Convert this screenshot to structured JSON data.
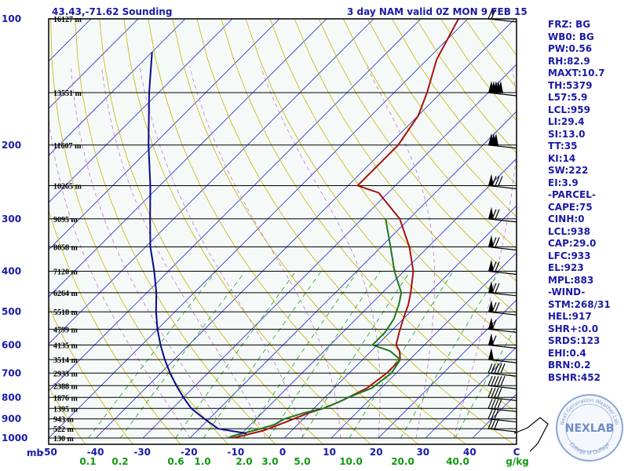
{
  "header": {
    "location": "43.43,-71.62 Sounding",
    "valid": "3 day NAM valid 0Z MON  9 FEB 15"
  },
  "colors": {
    "frame": "#000000",
    "background": "#f5faf9",
    "isobar": "#000000",
    "isotherm": "#2a2ad0",
    "dry_adiabat": "#c8b400",
    "moist_adiabat": "#d070d0",
    "mixing_ratio": "#20a020",
    "temperature": "#aa1010",
    "dewpoint": "#1a7a1a",
    "parcel": "#0a0a8c",
    "label_blue": "#1a1aa6",
    "label_green": "#119911"
  },
  "chart_data": {
    "type": "line",
    "title": "43.43,-71.62 Sounding",
    "subtitle": "3 day NAM valid 0Z MON  9 FEB 15",
    "x_unit_label": "C",
    "y_unit_label": "mb",
    "mixing_ratio_unit_label": "g/kg",
    "pressure_levels": [
      {
        "p": 100,
        "label": "100",
        "height": "16127 m"
      },
      {
        "p": 150,
        "label": "",
        "height": "13551 m"
      },
      {
        "p": 200,
        "label": "200",
        "height": "11607 m"
      },
      {
        "p": 250,
        "label": "",
        "height": "10265 m"
      },
      {
        "p": 300,
        "label": "300",
        "height": "9095 m"
      },
      {
        "p": 350,
        "label": "",
        "height": "8058 m"
      },
      {
        "p": 400,
        "label": "400",
        "height": "7120 m"
      },
      {
        "p": 450,
        "label": "",
        "height": "6264 m"
      },
      {
        "p": 500,
        "label": "500",
        "height": "5518 m"
      },
      {
        "p": 550,
        "label": "",
        "height": "4799 m"
      },
      {
        "p": 600,
        "label": "600",
        "height": "4135 m"
      },
      {
        "p": 650,
        "label": "",
        "height": "3514 m"
      },
      {
        "p": 700,
        "label": "700",
        "height": "2933 m"
      },
      {
        "p": 750,
        "label": "",
        "height": "2388 m"
      },
      {
        "p": 800,
        "label": "800",
        "height": "1876 m"
      },
      {
        "p": 850,
        "label": "",
        "height": "1395 m"
      },
      {
        "p": 900,
        "label": "900",
        "height": "943 m"
      },
      {
        "p": 950,
        "label": "",
        "height": "522 m"
      },
      {
        "p": 1000,
        "label": "1000",
        "height": "130 m"
      }
    ],
    "x_ticks": [
      "-50",
      "-40",
      "-30",
      "-20",
      "-10",
      "0",
      "10",
      "20",
      "30",
      "40",
      "C"
    ],
    "mixing_ratio_ticks": [
      "0.1",
      "0.2",
      "0.6",
      "1.0",
      "2.0",
      "3.0",
      "5.0",
      "10.0",
      "20.0",
      "40.0",
      "g/kg"
    ],
    "series": [
      {
        "role": "temperature",
        "points": [
          [
            1000,
            -11
          ],
          [
            985,
            -9
          ],
          [
            960,
            -6
          ],
          [
            930,
            -4
          ],
          [
            900,
            -2
          ],
          [
            870,
            0
          ],
          [
            850,
            2
          ],
          [
            820,
            4
          ],
          [
            800,
            5
          ],
          [
            760,
            7
          ],
          [
            700,
            8
          ],
          [
            650,
            8
          ],
          [
            620,
            6
          ],
          [
            600,
            4
          ],
          [
            560,
            2
          ],
          [
            520,
            0
          ],
          [
            480,
            -2
          ],
          [
            450,
            -4
          ],
          [
            400,
            -8
          ],
          [
            350,
            -14
          ],
          [
            300,
            -22
          ],
          [
            260,
            -32
          ],
          [
            250,
            -38
          ],
          [
            230,
            -38
          ],
          [
            200,
            -38
          ],
          [
            170,
            -40
          ],
          [
            150,
            -43
          ],
          [
            125,
            -48
          ],
          [
            100,
            -52
          ]
        ]
      },
      {
        "role": "dewpoint",
        "points": [
          [
            1000,
            -12
          ],
          [
            985,
            -11
          ],
          [
            960,
            -8
          ],
          [
            930,
            -5
          ],
          [
            900,
            -4
          ],
          [
            870,
            -1
          ],
          [
            850,
            2
          ],
          [
            820,
            4
          ],
          [
            800,
            5
          ],
          [
            760,
            8
          ],
          [
            700,
            9
          ],
          [
            650,
            8
          ],
          [
            620,
            4
          ],
          [
            600,
            -1
          ],
          [
            560,
            -1
          ],
          [
            520,
            -2
          ],
          [
            480,
            -4
          ],
          [
            450,
            -6
          ],
          [
            400,
            -12
          ],
          [
            350,
            -18
          ],
          [
            300,
            -25
          ]
        ]
      },
      {
        "role": "parcel",
        "points": [
          [
            975,
            -9
          ],
          [
            950,
            -16
          ],
          [
            900,
            -21
          ],
          [
            850,
            -26
          ],
          [
            800,
            -30
          ],
          [
            750,
            -34
          ],
          [
            700,
            -38
          ],
          [
            650,
            -42
          ],
          [
            600,
            -46
          ],
          [
            550,
            -50
          ],
          [
            500,
            -54
          ],
          [
            450,
            -58
          ],
          [
            400,
            -63
          ],
          [
            350,
            -69
          ],
          [
            300,
            -75
          ],
          [
            250,
            -82
          ],
          [
            200,
            -91
          ],
          [
            150,
            -102
          ],
          [
            120,
            -110
          ]
        ]
      }
    ],
    "winds": [
      {
        "p": 100,
        "flags": 0,
        "barbs": 2
      },
      {
        "p": 150,
        "flags": 5,
        "barbs": 0
      },
      {
        "p": 200,
        "flags": 3,
        "barbs": 0
      },
      {
        "p": 250,
        "flags": 1,
        "barbs": 3
      },
      {
        "p": 300,
        "flags": 1,
        "barbs": 2
      },
      {
        "p": 350,
        "flags": 1,
        "barbs": 2
      },
      {
        "p": 400,
        "flags": 1,
        "barbs": 2
      },
      {
        "p": 450,
        "flags": 1,
        "barbs": 2
      },
      {
        "p": 500,
        "flags": 1,
        "barbs": 2
      },
      {
        "p": 550,
        "flags": 1,
        "barbs": 1
      },
      {
        "p": 600,
        "flags": 1,
        "barbs": 1
      },
      {
        "p": 650,
        "flags": 1,
        "barbs": 0
      },
      {
        "p": 700,
        "flags": 0,
        "barbs": 5
      },
      {
        "p": 750,
        "flags": 0,
        "barbs": 5
      },
      {
        "p": 800,
        "flags": 0,
        "barbs": 4
      },
      {
        "p": 850,
        "flags": 0,
        "barbs": 4
      },
      {
        "p": 900,
        "flags": 0,
        "barbs": 3
      },
      {
        "p": 950,
        "flags": 0,
        "barbs": 3
      }
    ]
  },
  "indices": [
    "FRZ: BG",
    "WB0: BG",
    "PW:0.56",
    "RH:82.9",
    "MAXT:10.7",
    "TH:5379",
    "L57:5.9",
    "LCL:959",
    "LI:29.4",
    "SI:13.0",
    "TT:35",
    "KI:14",
    "SW:222",
    "EI:3.9",
    "-PARCEL-",
    "CAPE:75",
    "CINH:0",
    "LCL:938",
    "CAP:29.0",
    "LFC:933",
    "EL:923",
    "MPL:883",
    "-WIND-",
    "STM:268/31",
    "HEL:917",
    "SHR+:0.0",
    "SRDS:123",
    "EHI:0.4",
    "BRN:0.2",
    "BSHR:452"
  ],
  "logo": {
    "text": "NEXLAB",
    "ring_top": "Next Generation Weather Lab",
    "ring_bottom": "College of DuPage"
  }
}
